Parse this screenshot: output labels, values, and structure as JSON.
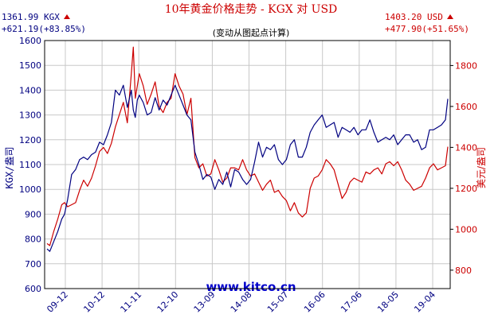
{
  "header": {
    "title": "10年黄金价格走势 - KGX 对 USD",
    "subtitle": "(变动从图起点计算)",
    "left_value": "1361.99 KGX",
    "left_change": "+621.19(+83.85%)",
    "right_value": "1403.20 USD",
    "right_change": "+477.90(+51.65%)"
  },
  "chart_data": {
    "type": "line",
    "watermark": "www.kitco.cn",
    "x_ticks": [
      "09-12",
      "10-12",
      "11-11",
      "12-10",
      "13-09",
      "14-08",
      "15-07",
      "16-06",
      "17-06",
      "18-05",
      "19-04"
    ],
    "left_axis": {
      "label": "KGX/盎司",
      "ylim": [
        600,
        1600
      ],
      "ticks": [
        600,
        700,
        800,
        900,
        1000,
        1100,
        1200,
        1300,
        1400,
        1500,
        1600
      ]
    },
    "right_axis": {
      "label": "美元/盎司",
      "ylim": [
        710,
        1922
      ],
      "ticks": [
        800,
        1000,
        1200,
        1400,
        1600,
        1800
      ]
    },
    "grid": true,
    "colors": {
      "kgx": "#000080",
      "usd": "#cc0000",
      "grid": "#c8c8c8",
      "watermark": "#0000cc"
    },
    "series": [
      {
        "axis": "left",
        "x": [
          2009.48,
          2009.55,
          2009.65,
          2009.75,
          2009.85,
          2009.92,
          2010.0,
          2010.1,
          2010.2,
          2010.3,
          2010.4,
          2010.5,
          2010.6,
          2010.7,
          2010.8,
          2010.9,
          2011.0,
          2011.1,
          2011.2,
          2011.3,
          2011.4,
          2011.5,
          2011.6,
          2011.65,
          2011.7,
          2011.75,
          2011.8,
          2011.9,
          2012.0,
          2012.1,
          2012.2,
          2012.3,
          2012.4,
          2012.5,
          2012.6,
          2012.7,
          2012.8,
          2012.9,
          2013.0,
          2013.1,
          2013.2,
          2013.3,
          2013.4,
          2013.5,
          2013.6,
          2013.7,
          2013.8,
          2013.9,
          2014.0,
          2014.1,
          2014.2,
          2014.3,
          2014.4,
          2014.5,
          2014.6,
          2014.7,
          2014.8,
          2014.9,
          2015.0,
          2015.1,
          2015.2,
          2015.3,
          2015.4,
          2015.5,
          2015.6,
          2015.7,
          2015.8,
          2015.9,
          2016.0,
          2016.1,
          2016.2,
          2016.3,
          2016.4,
          2016.5,
          2016.6,
          2016.7,
          2016.8,
          2016.9,
          2017.0,
          2017.1,
          2017.2,
          2017.3,
          2017.4,
          2017.5,
          2017.6,
          2017.7,
          2017.8,
          2017.9,
          2018.0,
          2018.1,
          2018.2,
          2018.3,
          2018.4,
          2018.5,
          2018.6,
          2018.7,
          2018.8,
          2018.9,
          2019.0,
          2019.1,
          2019.2,
          2019.3,
          2019.4,
          2019.5,
          2019.56
        ],
        "y": [
          760,
          750,
          790,
          830,
          880,
          900,
          960,
          1060,
          1080,
          1120,
          1130,
          1120,
          1140,
          1150,
          1190,
          1180,
          1220,
          1270,
          1400,
          1380,
          1420,
          1330,
          1400,
          1320,
          1290,
          1360,
          1380,
          1350,
          1300,
          1310,
          1370,
          1320,
          1360,
          1340,
          1380,
          1420,
          1380,
          1340,
          1300,
          1280,
          1150,
          1100,
          1040,
          1060,
          1050,
          1000,
          1040,
          1020,
          1070,
          1010,
          1080,
          1070,
          1040,
          1020,
          1040,
          1110,
          1190,
          1130,
          1170,
          1160,
          1180,
          1120,
          1100,
          1120,
          1180,
          1200,
          1130,
          1130,
          1170,
          1230,
          1260,
          1280,
          1300,
          1250,
          1260,
          1270,
          1210,
          1250,
          1240,
          1230,
          1250,
          1220,
          1240,
          1240,
          1280,
          1230,
          1190,
          1200,
          1210,
          1200,
          1220,
          1180,
          1200,
          1220,
          1220,
          1190,
          1200,
          1160,
          1170,
          1240,
          1240,
          1250,
          1260,
          1280,
          1365
        ]
      },
      {
        "axis": "right",
        "x": [
          2009.48,
          2009.55,
          2009.65,
          2009.75,
          2009.85,
          2009.92,
          2010.0,
          2010.1,
          2010.2,
          2010.3,
          2010.4,
          2010.5,
          2010.6,
          2010.7,
          2010.8,
          2010.9,
          2011.0,
          2011.1,
          2011.2,
          2011.3,
          2011.4,
          2011.5,
          2011.6,
          2011.65,
          2011.7,
          2011.75,
          2011.8,
          2011.9,
          2012.0,
          2012.1,
          2012.2,
          2012.3,
          2012.4,
          2012.5,
          2012.6,
          2012.7,
          2012.8,
          2012.9,
          2013.0,
          2013.1,
          2013.2,
          2013.3,
          2013.4,
          2013.5,
          2013.6,
          2013.7,
          2013.8,
          2013.9,
          2014.0,
          2014.1,
          2014.2,
          2014.3,
          2014.4,
          2014.5,
          2014.6,
          2014.7,
          2014.8,
          2014.9,
          2015.0,
          2015.1,
          2015.2,
          2015.3,
          2015.4,
          2015.5,
          2015.6,
          2015.7,
          2015.8,
          2015.9,
          2016.0,
          2016.1,
          2016.2,
          2016.3,
          2016.4,
          2016.5,
          2016.6,
          2016.7,
          2016.8,
          2016.9,
          2017.0,
          2017.1,
          2017.2,
          2017.3,
          2017.4,
          2017.5,
          2017.6,
          2017.7,
          2017.8,
          2017.9,
          2018.0,
          2018.1,
          2018.2,
          2018.3,
          2018.4,
          2018.5,
          2018.6,
          2018.7,
          2018.8,
          2018.9,
          2019.0,
          2019.1,
          2019.2,
          2019.3,
          2019.4,
          2019.5,
          2019.56
        ],
        "y": [
          930,
          920,
          990,
          1050,
          1120,
          1130,
          1110,
          1120,
          1130,
          1190,
          1240,
          1210,
          1250,
          1310,
          1380,
          1400,
          1370,
          1420,
          1500,
          1560,
          1620,
          1520,
          1760,
          1890,
          1640,
          1700,
          1760,
          1700,
          1610,
          1660,
          1720,
          1600,
          1570,
          1620,
          1640,
          1760,
          1700,
          1660,
          1560,
          1640,
          1350,
          1300,
          1320,
          1260,
          1270,
          1340,
          1290,
          1230,
          1250,
          1300,
          1300,
          1290,
          1340,
          1290,
          1260,
          1270,
          1230,
          1190,
          1220,
          1240,
          1180,
          1190,
          1160,
          1140,
          1090,
          1130,
          1080,
          1060,
          1080,
          1200,
          1250,
          1260,
          1290,
          1340,
          1320,
          1290,
          1220,
          1150,
          1180,
          1230,
          1250,
          1240,
          1230,
          1280,
          1270,
          1290,
          1300,
          1270,
          1320,
          1330,
          1310,
          1330,
          1290,
          1240,
          1220,
          1190,
          1200,
          1210,
          1250,
          1300,
          1320,
          1290,
          1300,
          1310,
          1403
        ]
      }
    ]
  }
}
